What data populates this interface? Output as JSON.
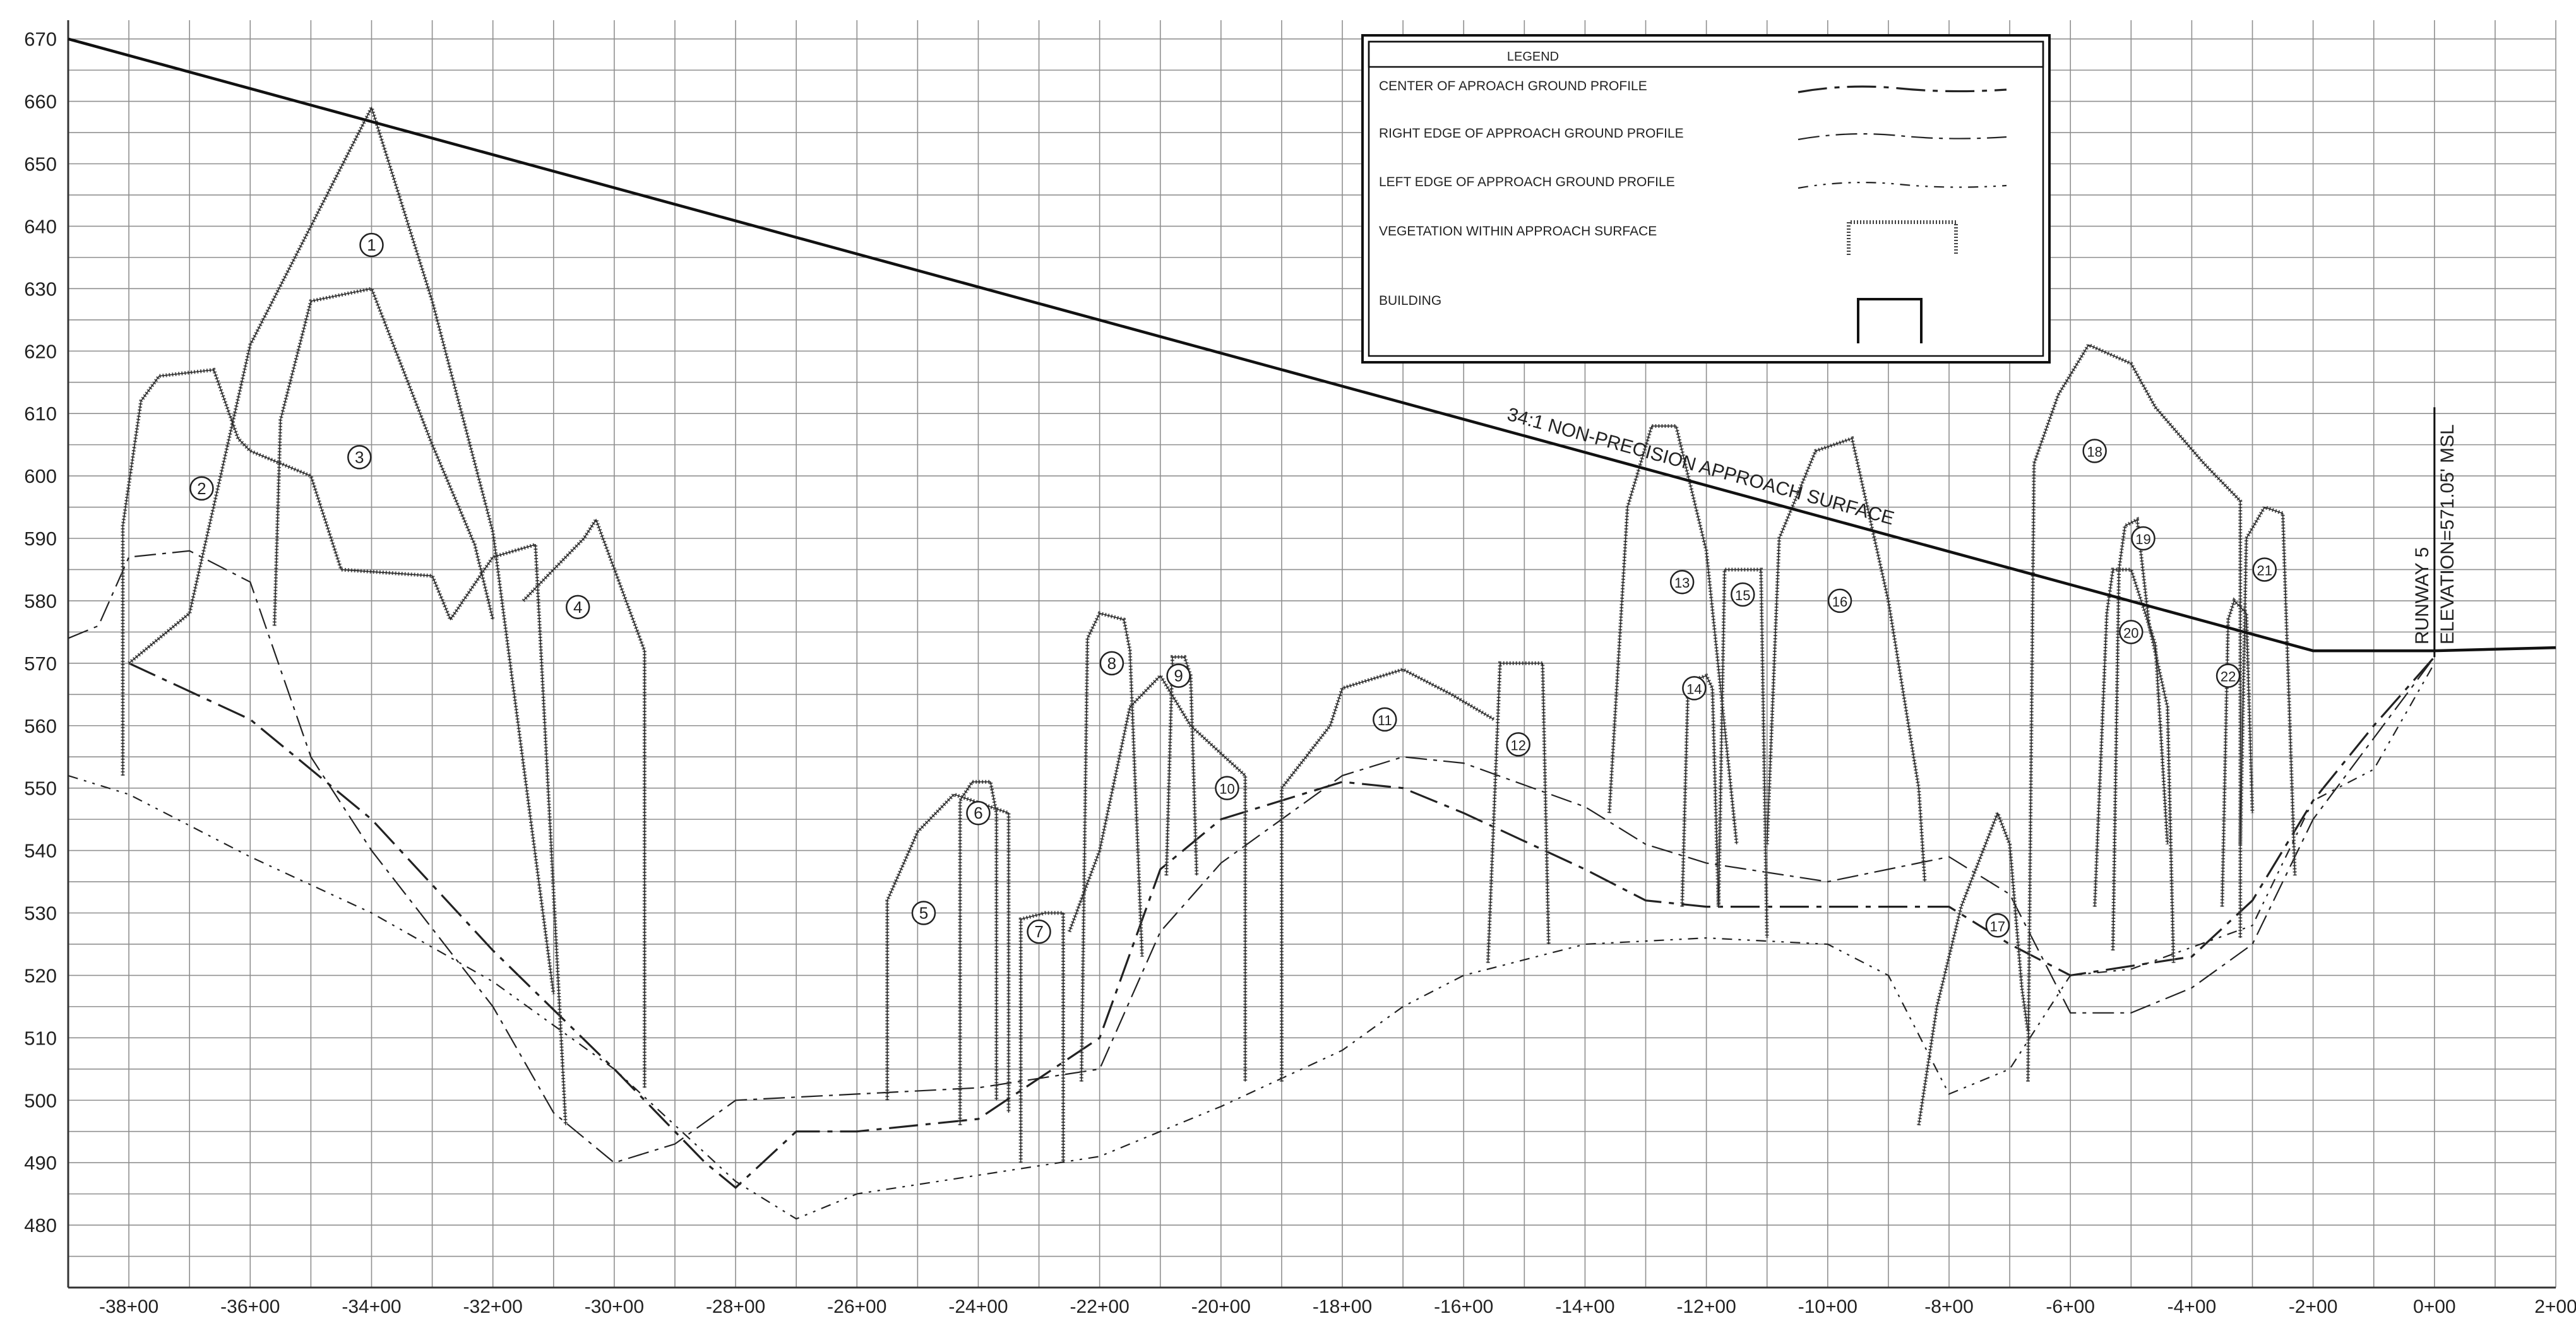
{
  "chart_data": {
    "type": "line",
    "title": "",
    "xlabel": "",
    "ylabel": "",
    "xlim": [
      -3900,
      200
    ],
    "ylim": [
      470,
      673
    ],
    "grid": true,
    "x_ticks": [
      -3800,
      -3600,
      -3400,
      -3200,
      -3000,
      -2800,
      -2600,
      -2400,
      -2200,
      -2000,
      -1800,
      -1600,
      -1400,
      -1200,
      -1000,
      -800,
      -600,
      -400,
      -200,
      0,
      200
    ],
    "x_tick_labels": [
      "-38+00",
      "-36+00",
      "-34+00",
      "-32+00",
      "-30+00",
      "-28+00",
      "-26+00",
      "-24+00",
      "-22+00",
      "-20+00",
      "-18+00",
      "-16+00",
      "-14+00",
      "-12+00",
      "-10+00",
      "-8+00",
      "-6+00",
      "-4+00",
      "-2+00",
      "0+00",
      "2+00"
    ],
    "y_ticks": [
      480,
      490,
      500,
      510,
      520,
      530,
      540,
      550,
      560,
      570,
      580,
      590,
      600,
      610,
      620,
      630,
      640,
      650,
      660,
      670
    ],
    "legend": {
      "title": "LEGEND",
      "placement": "top-right",
      "items": [
        {
          "label": "CENTER OF APROACH GROUND PROFILE",
          "style": "center"
        },
        {
          "label": "RIGHT EDGE OF APPROACH GROUND PROFILE",
          "style": "right"
        },
        {
          "label": "LEFT EDGE OF APPROACH GROUND PROFILE",
          "style": "left"
        },
        {
          "label": "VEGETATION WITHIN APPROACH SURFACE",
          "style": "vegetation"
        },
        {
          "label": "BUILDING",
          "style": "building"
        }
      ]
    },
    "surface": {
      "label": "34:1 NON-PRECISION APPROACH SURFACE",
      "points": [
        [
          -3900,
          670
        ],
        [
          -200,
          572
        ],
        [
          0,
          572
        ],
        [
          200,
          572.5
        ]
      ]
    },
    "runway": {
      "label_1": "RUNWAY 5",
      "label_2": "ELEVATION=571.05' MSL",
      "x": 0,
      "elevation": 571.05
    },
    "series": [
      {
        "style": "center",
        "values": [
          [
            -3800,
            570
          ],
          [
            -3600,
            561
          ],
          [
            -3400,
            545
          ],
          [
            -3200,
            524
          ],
          [
            -3000,
            505
          ],
          [
            -2850,
            490
          ],
          [
            -2800,
            486
          ],
          [
            -2700,
            495
          ],
          [
            -2600,
            495
          ],
          [
            -2400,
            497
          ],
          [
            -2200,
            510
          ],
          [
            -2100,
            537
          ],
          [
            -2000,
            545
          ],
          [
            -1800,
            551
          ],
          [
            -1700,
            550
          ],
          [
            -1600,
            546
          ],
          [
            -1400,
            537
          ],
          [
            -1300,
            532
          ],
          [
            -1200,
            531
          ],
          [
            -1000,
            531
          ],
          [
            -800,
            531
          ],
          [
            -700,
            525
          ],
          [
            -600,
            520
          ],
          [
            -400,
            523
          ],
          [
            -300,
            532
          ],
          [
            -200,
            548
          ],
          [
            -100,
            560
          ],
          [
            0,
            571
          ]
        ]
      },
      {
        "style": "right",
        "values": [
          [
            -3900,
            574
          ],
          [
            -3850,
            576
          ],
          [
            -3800,
            587
          ],
          [
            -3700,
            588
          ],
          [
            -3600,
            583
          ],
          [
            -3500,
            555
          ],
          [
            -3400,
            540
          ],
          [
            -3200,
            515
          ],
          [
            -3100,
            498
          ],
          [
            -3000,
            490
          ],
          [
            -2900,
            493
          ],
          [
            -2800,
            500
          ],
          [
            -2600,
            501
          ],
          [
            -2400,
            502
          ],
          [
            -2200,
            505
          ],
          [
            -2100,
            527
          ],
          [
            -2000,
            538
          ],
          [
            -1900,
            545
          ],
          [
            -1800,
            552
          ],
          [
            -1700,
            555
          ],
          [
            -1600,
            554
          ],
          [
            -1400,
            547
          ],
          [
            -1300,
            541
          ],
          [
            -1200,
            538
          ],
          [
            -1000,
            535
          ],
          [
            -800,
            539
          ],
          [
            -700,
            533
          ],
          [
            -600,
            514
          ],
          [
            -500,
            514
          ],
          [
            -400,
            518
          ],
          [
            -300,
            525
          ],
          [
            -200,
            545
          ],
          [
            -100,
            558
          ],
          [
            0,
            571
          ]
        ]
      },
      {
        "style": "left",
        "values": [
          [
            -3900,
            552
          ],
          [
            -3800,
            549
          ],
          [
            -3600,
            539
          ],
          [
            -3400,
            530
          ],
          [
            -3200,
            519
          ],
          [
            -3000,
            505
          ],
          [
            -2800,
            487
          ],
          [
            -2700,
            481
          ],
          [
            -2600,
            485
          ],
          [
            -2400,
            488
          ],
          [
            -2200,
            491
          ],
          [
            -2100,
            495
          ],
          [
            -2000,
            499
          ],
          [
            -1800,
            508
          ],
          [
            -1700,
            515
          ],
          [
            -1600,
            520
          ],
          [
            -1400,
            525
          ],
          [
            -1200,
            526
          ],
          [
            -1000,
            525
          ],
          [
            -900,
            520
          ],
          [
            -800,
            501
          ],
          [
            -700,
            505
          ],
          [
            -600,
            520
          ],
          [
            -500,
            521
          ],
          [
            -300,
            528
          ],
          [
            -200,
            548
          ],
          [
            -100,
            553
          ],
          [
            0,
            570
          ]
        ]
      }
    ],
    "vegetation": [
      {
        "id": "1",
        "label_x": -3400,
        "label_y": 637,
        "outline": [
          [
            -3800,
            570
          ],
          [
            -3700,
            578
          ],
          [
            -3600,
            621
          ],
          [
            -3400,
            659
          ],
          [
            -3300,
            628
          ],
          [
            -3200,
            591
          ],
          [
            -3100,
            517
          ]
        ]
      },
      {
        "id": "2",
        "label_x": -3680,
        "label_y": 598,
        "outline": [
          [
            -3810,
            552
          ],
          [
            -3810,
            592
          ],
          [
            -3780,
            612
          ],
          [
            -3750,
            616
          ],
          [
            -3660,
            617
          ],
          [
            -3620,
            606
          ],
          [
            -3600,
            604
          ],
          [
            -3500,
            600
          ],
          [
            -3450,
            585
          ],
          [
            -3300,
            584
          ],
          [
            -3270,
            577
          ],
          [
            -3200,
            587
          ],
          [
            -3130,
            589
          ],
          [
            -3080,
            496
          ]
        ]
      },
      {
        "id": "3",
        "label_x": -3420,
        "label_y": 603,
        "outline": [
          [
            -3560,
            576
          ],
          [
            -3550,
            609
          ],
          [
            -3500,
            628
          ],
          [
            -3400,
            630
          ],
          [
            -3300,
            605
          ],
          [
            -3230,
            589
          ],
          [
            -3200,
            577
          ]
        ]
      },
      {
        "id": "4",
        "label_x": -3060,
        "label_y": 579,
        "outline": [
          [
            -3150,
            580
          ],
          [
            -3050,
            590
          ],
          [
            -3030,
            593
          ],
          [
            -2950,
            572
          ],
          [
            -2950,
            502
          ]
        ]
      },
      {
        "id": "5",
        "label_x": -2490,
        "label_y": 530,
        "outline": [
          [
            -2550,
            500
          ],
          [
            -2550,
            532
          ],
          [
            -2500,
            543
          ],
          [
            -2440,
            549
          ],
          [
            -2350,
            546
          ],
          [
            -2350,
            498
          ]
        ]
      },
      {
        "id": "6",
        "label_x": -2400,
        "label_y": 546,
        "outline": [
          [
            -2430,
            496
          ],
          [
            -2430,
            548
          ],
          [
            -2410,
            551
          ],
          [
            -2380,
            551
          ],
          [
            -2370,
            546
          ],
          [
            -2370,
            500
          ]
        ]
      },
      {
        "id": "7",
        "label_x": -2300,
        "label_y": 527,
        "outline": [
          [
            -2330,
            490
          ],
          [
            -2330,
            529
          ],
          [
            -2290,
            530
          ],
          [
            -2260,
            530
          ],
          [
            -2260,
            490
          ]
        ]
      },
      {
        "id": "8",
        "label_x": -2180,
        "label_y": 570,
        "outline": [
          [
            -2230,
            503
          ],
          [
            -2220,
            574
          ],
          [
            -2200,
            578
          ],
          [
            -2160,
            577
          ],
          [
            -2150,
            572
          ],
          [
            -2130,
            523
          ]
        ]
      },
      {
        "id": "9",
        "label_x": -2070,
        "label_y": 568,
        "outline": [
          [
            -2090,
            536
          ],
          [
            -2080,
            571
          ],
          [
            -2060,
            571
          ],
          [
            -2050,
            568
          ],
          [
            -2040,
            536
          ]
        ]
      },
      {
        "id": "10",
        "label_x": -1990,
        "label_y": 550,
        "outline": [
          [
            -2250,
            527
          ],
          [
            -2200,
            540
          ],
          [
            -2150,
            563
          ],
          [
            -2100,
            568
          ],
          [
            -2050,
            560
          ],
          [
            -1960,
            552
          ],
          [
            -1960,
            503
          ]
        ]
      },
      {
        "id": "11",
        "label_x": -1730,
        "label_y": 561,
        "outline": [
          [
            -1900,
            503
          ],
          [
            -1900,
            550
          ],
          [
            -1820,
            560
          ],
          [
            -1800,
            566
          ],
          [
            -1700,
            569
          ],
          [
            -1620,
            565
          ],
          [
            -1550,
            561
          ]
        ]
      },
      {
        "id": "12",
        "label_x": -1510,
        "label_y": 557,
        "outline": [
          [
            -1560,
            522
          ],
          [
            -1540,
            570
          ],
          [
            -1470,
            570
          ],
          [
            -1460,
            525
          ]
        ]
      },
      {
        "id": "13",
        "label_x": -1240,
        "label_y": 583,
        "outline": [
          [
            -1360,
            546
          ],
          [
            -1330,
            595
          ],
          [
            -1290,
            608
          ],
          [
            -1250,
            608
          ],
          [
            -1200,
            588
          ],
          [
            -1150,
            541
          ]
        ]
      },
      {
        "id": "14",
        "label_x": -1220,
        "label_y": 566,
        "outline": [
          [
            -1240,
            531
          ],
          [
            -1230,
            567
          ],
          [
            -1200,
            568
          ],
          [
            -1190,
            566
          ],
          [
            -1180,
            531
          ]
        ]
      },
      {
        "id": "15",
        "label_x": -1140,
        "label_y": 581,
        "outline": [
          [
            -1180,
            531
          ],
          [
            -1170,
            585
          ],
          [
            -1140,
            585
          ],
          [
            -1110,
            585
          ],
          [
            -1100,
            526
          ]
        ]
      },
      {
        "id": "16",
        "label_x": -980,
        "label_y": 580,
        "outline": [
          [
            -1100,
            541
          ],
          [
            -1080,
            590
          ],
          [
            -1020,
            604
          ],
          [
            -960,
            606
          ],
          [
            -900,
            580
          ],
          [
            -850,
            550
          ],
          [
            -840,
            535
          ]
        ]
      },
      {
        "id": "17",
        "label_x": -720,
        "label_y": 528,
        "outline": [
          [
            -850,
            496
          ],
          [
            -820,
            515
          ],
          [
            -780,
            531
          ],
          [
            -740,
            541
          ],
          [
            -720,
            546
          ],
          [
            -700,
            541
          ],
          [
            -680,
            518
          ],
          [
            -670,
            511
          ]
        ]
      },
      {
        "id": "18",
        "label_x": -560,
        "label_y": 604,
        "outline": [
          [
            -670,
            503
          ],
          [
            -660,
            602
          ],
          [
            -620,
            613
          ],
          [
            -570,
            621
          ],
          [
            -500,
            618
          ],
          [
            -460,
            611
          ],
          [
            -380,
            602
          ],
          [
            -320,
            596
          ],
          [
            -320,
            526
          ]
        ]
      },
      {
        "id": "19",
        "label_x": -480,
        "label_y": 590,
        "outline": [
          [
            -530,
            524
          ],
          [
            -520,
            585
          ],
          [
            -510,
            592
          ],
          [
            -490,
            593
          ],
          [
            -470,
            576
          ],
          [
            -440,
            563
          ],
          [
            -430,
            522
          ]
        ]
      },
      {
        "id": "20",
        "label_x": -500,
        "label_y": 575,
        "outline": [
          [
            -560,
            531
          ],
          [
            -540,
            578
          ],
          [
            -530,
            585
          ],
          [
            -500,
            585
          ],
          [
            -460,
            573
          ],
          [
            -440,
            541
          ]
        ]
      },
      {
        "id": "21",
        "label_x": -280,
        "label_y": 585,
        "outline": [
          [
            -320,
            541
          ],
          [
            -310,
            590
          ],
          [
            -280,
            595
          ],
          [
            -250,
            594
          ],
          [
            -240,
            565
          ],
          [
            -230,
            536
          ]
        ]
      },
      {
        "id": "22",
        "label_x": -340,
        "label_y": 568,
        "outline": [
          [
            -350,
            531
          ],
          [
            -340,
            577
          ],
          [
            -330,
            580
          ],
          [
            -310,
            578
          ],
          [
            -300,
            546
          ]
        ]
      }
    ]
  }
}
